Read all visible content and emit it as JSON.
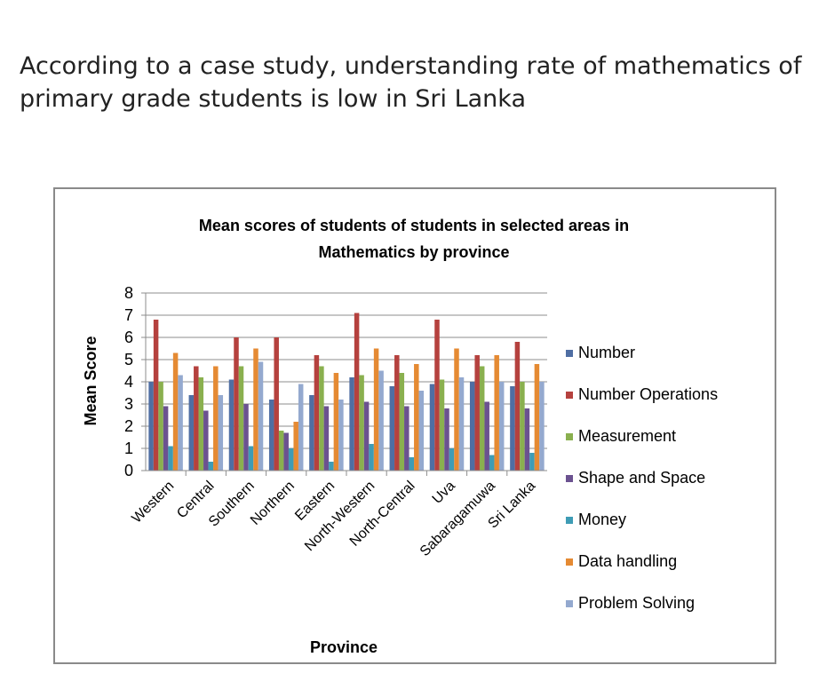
{
  "caption": {
    "line1": "According to a case study, understanding rate of mathematics of",
    "line2": "primary grade students is low in Sri Lanka"
  },
  "chart_data": {
    "type": "bar",
    "title": "Mean scores of students of students in selected areas in",
    "title_line2": "Mathematics by province",
    "xlabel": "Province",
    "ylabel": "Mean Score",
    "ylim": [
      0,
      8
    ],
    "yticks": [
      "0",
      "1",
      "2",
      "3",
      "4",
      "5",
      "6",
      "7",
      "8"
    ],
    "grid": true,
    "legend_position": "right",
    "categories": [
      "Western",
      "Central",
      "Southern",
      "Northern",
      "Eastern",
      "North-Western",
      "North-Central",
      "Uva",
      "Sabaragamuwa",
      "Sri Lanka"
    ],
    "series": [
      {
        "name": "Number",
        "color": "#4f6ea3",
        "values": [
          4.0,
          3.4,
          4.1,
          3.2,
          3.4,
          4.2,
          3.8,
          3.9,
          4.0,
          3.8
        ]
      },
      {
        "name": "Number Operations",
        "color": "#b5413e",
        "values": [
          6.8,
          4.7,
          6.0,
          6.0,
          5.2,
          7.1,
          5.2,
          6.8,
          5.2,
          5.8
        ]
      },
      {
        "name": "Measurement",
        "color": "#8ab04f",
        "values": [
          4.0,
          4.2,
          4.7,
          1.8,
          4.7,
          4.3,
          4.4,
          4.1,
          4.7,
          4.0
        ]
      },
      {
        "name": "Shape and Space",
        "color": "#6b5290",
        "values": [
          2.9,
          2.7,
          3.0,
          1.7,
          2.9,
          3.1,
          2.9,
          2.8,
          3.1,
          2.8
        ]
      },
      {
        "name": "Money",
        "color": "#3e9cb5",
        "values": [
          1.1,
          0.4,
          1.1,
          1.0,
          0.4,
          1.2,
          0.6,
          1.0,
          0.7,
          0.8
        ]
      },
      {
        "name": "Data handling",
        "color": "#e58a33",
        "values": [
          5.3,
          4.7,
          5.5,
          2.2,
          4.4,
          5.5,
          4.8,
          5.5,
          5.2,
          4.8
        ]
      },
      {
        "name": "Problem Solving",
        "color": "#94a9cf",
        "values": [
          4.3,
          3.4,
          4.9,
          3.9,
          3.2,
          4.5,
          3.6,
          4.2,
          4.0,
          4.0
        ]
      }
    ]
  }
}
